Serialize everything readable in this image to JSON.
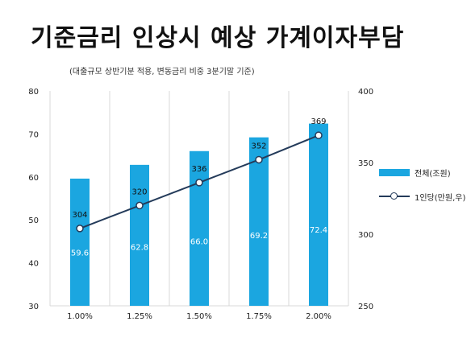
{
  "title": "기준금리 인상시 예상 가계이자부담",
  "subtitle": "(대출규모 상반기분 적용, 변동금리 비중 3분기말 기준)",
  "legend": {
    "bar_label": "전체(조원)",
    "line_label": "1인당(만원,우)"
  },
  "colors": {
    "bar": "#1ba6e0",
    "line": "#243b5a",
    "grid": "#d9d9d9",
    "bar_label": "#ffffff",
    "line_label": "#111111"
  },
  "chart_data": {
    "type": "bar",
    "categories": [
      "1.00%",
      "1.25%",
      "1.50%",
      "1.75%",
      "2.00%"
    ],
    "series": [
      {
        "name": "전체(조원)",
        "type": "bar",
        "axis": "left",
        "values": [
          59.6,
          62.8,
          66.0,
          69.2,
          72.4
        ],
        "labels": [
          "59.6",
          "62.8",
          "66.0",
          "69.2",
          "72.4"
        ]
      },
      {
        "name": "1인당(만원,우)",
        "type": "line",
        "axis": "right",
        "values": [
          304,
          320,
          336,
          352,
          369
        ],
        "labels": [
          "304",
          "320",
          "336",
          "352",
          "369"
        ]
      }
    ],
    "y_left": {
      "range": [
        30,
        80
      ],
      "ticks": [
        "30",
        "40",
        "50",
        "60",
        "70",
        "80"
      ]
    },
    "y_right": {
      "range": [
        250,
        400
      ],
      "ticks": [
        "250",
        "300",
        "350",
        "400"
      ]
    },
    "grid": "vertical",
    "legend_position": "right"
  }
}
